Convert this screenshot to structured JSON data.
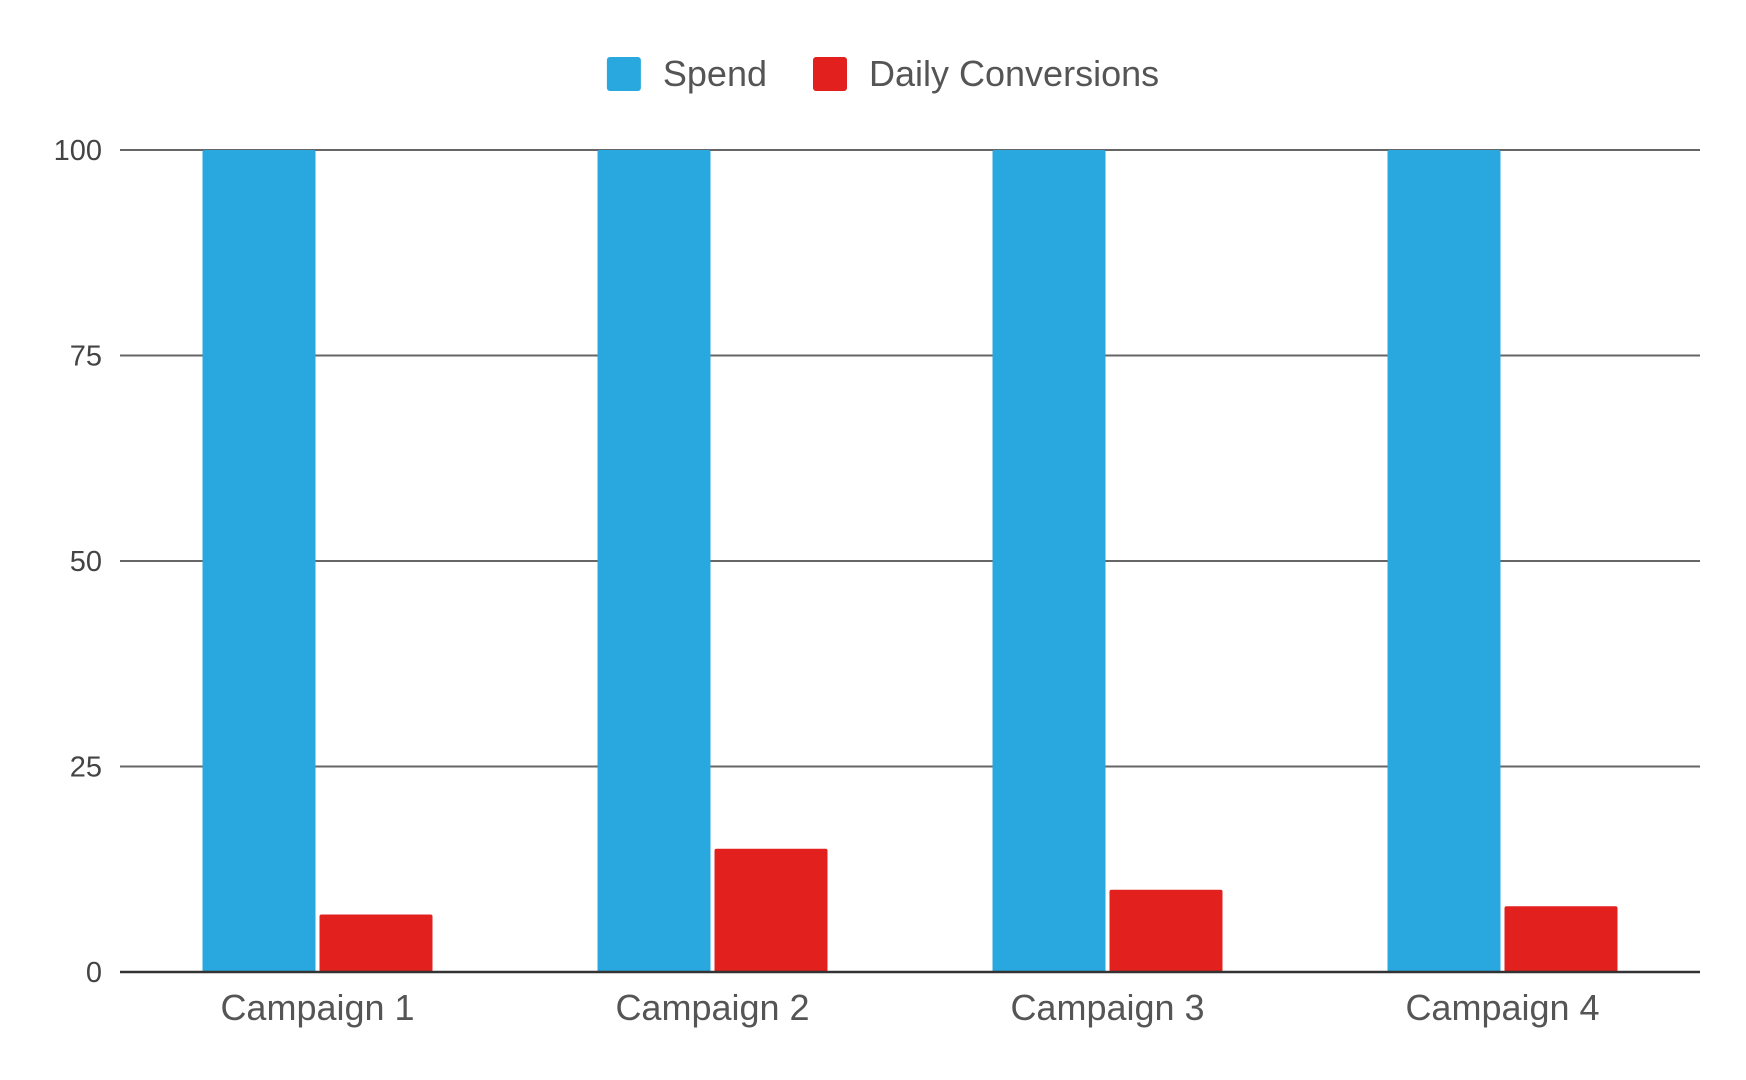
{
  "chart_data": {
    "type": "bar",
    "title": "",
    "xlabel": "",
    "ylabel": "",
    "categories": [
      "Campaign 1",
      "Campaign 2",
      "Campaign 3",
      "Campaign 4"
    ],
    "series": [
      {
        "name": "Spend",
        "values": [
          100,
          100,
          100,
          100
        ],
        "color": "#29A8E0"
      },
      {
        "name": "Daily Conversions",
        "values": [
          7,
          15,
          10,
          8
        ],
        "color": "#E2201D"
      }
    ],
    "ylim": [
      0,
      100
    ],
    "yticks": [
      0,
      25,
      50,
      75,
      100
    ],
    "grid": true,
    "legend_position": "top"
  }
}
